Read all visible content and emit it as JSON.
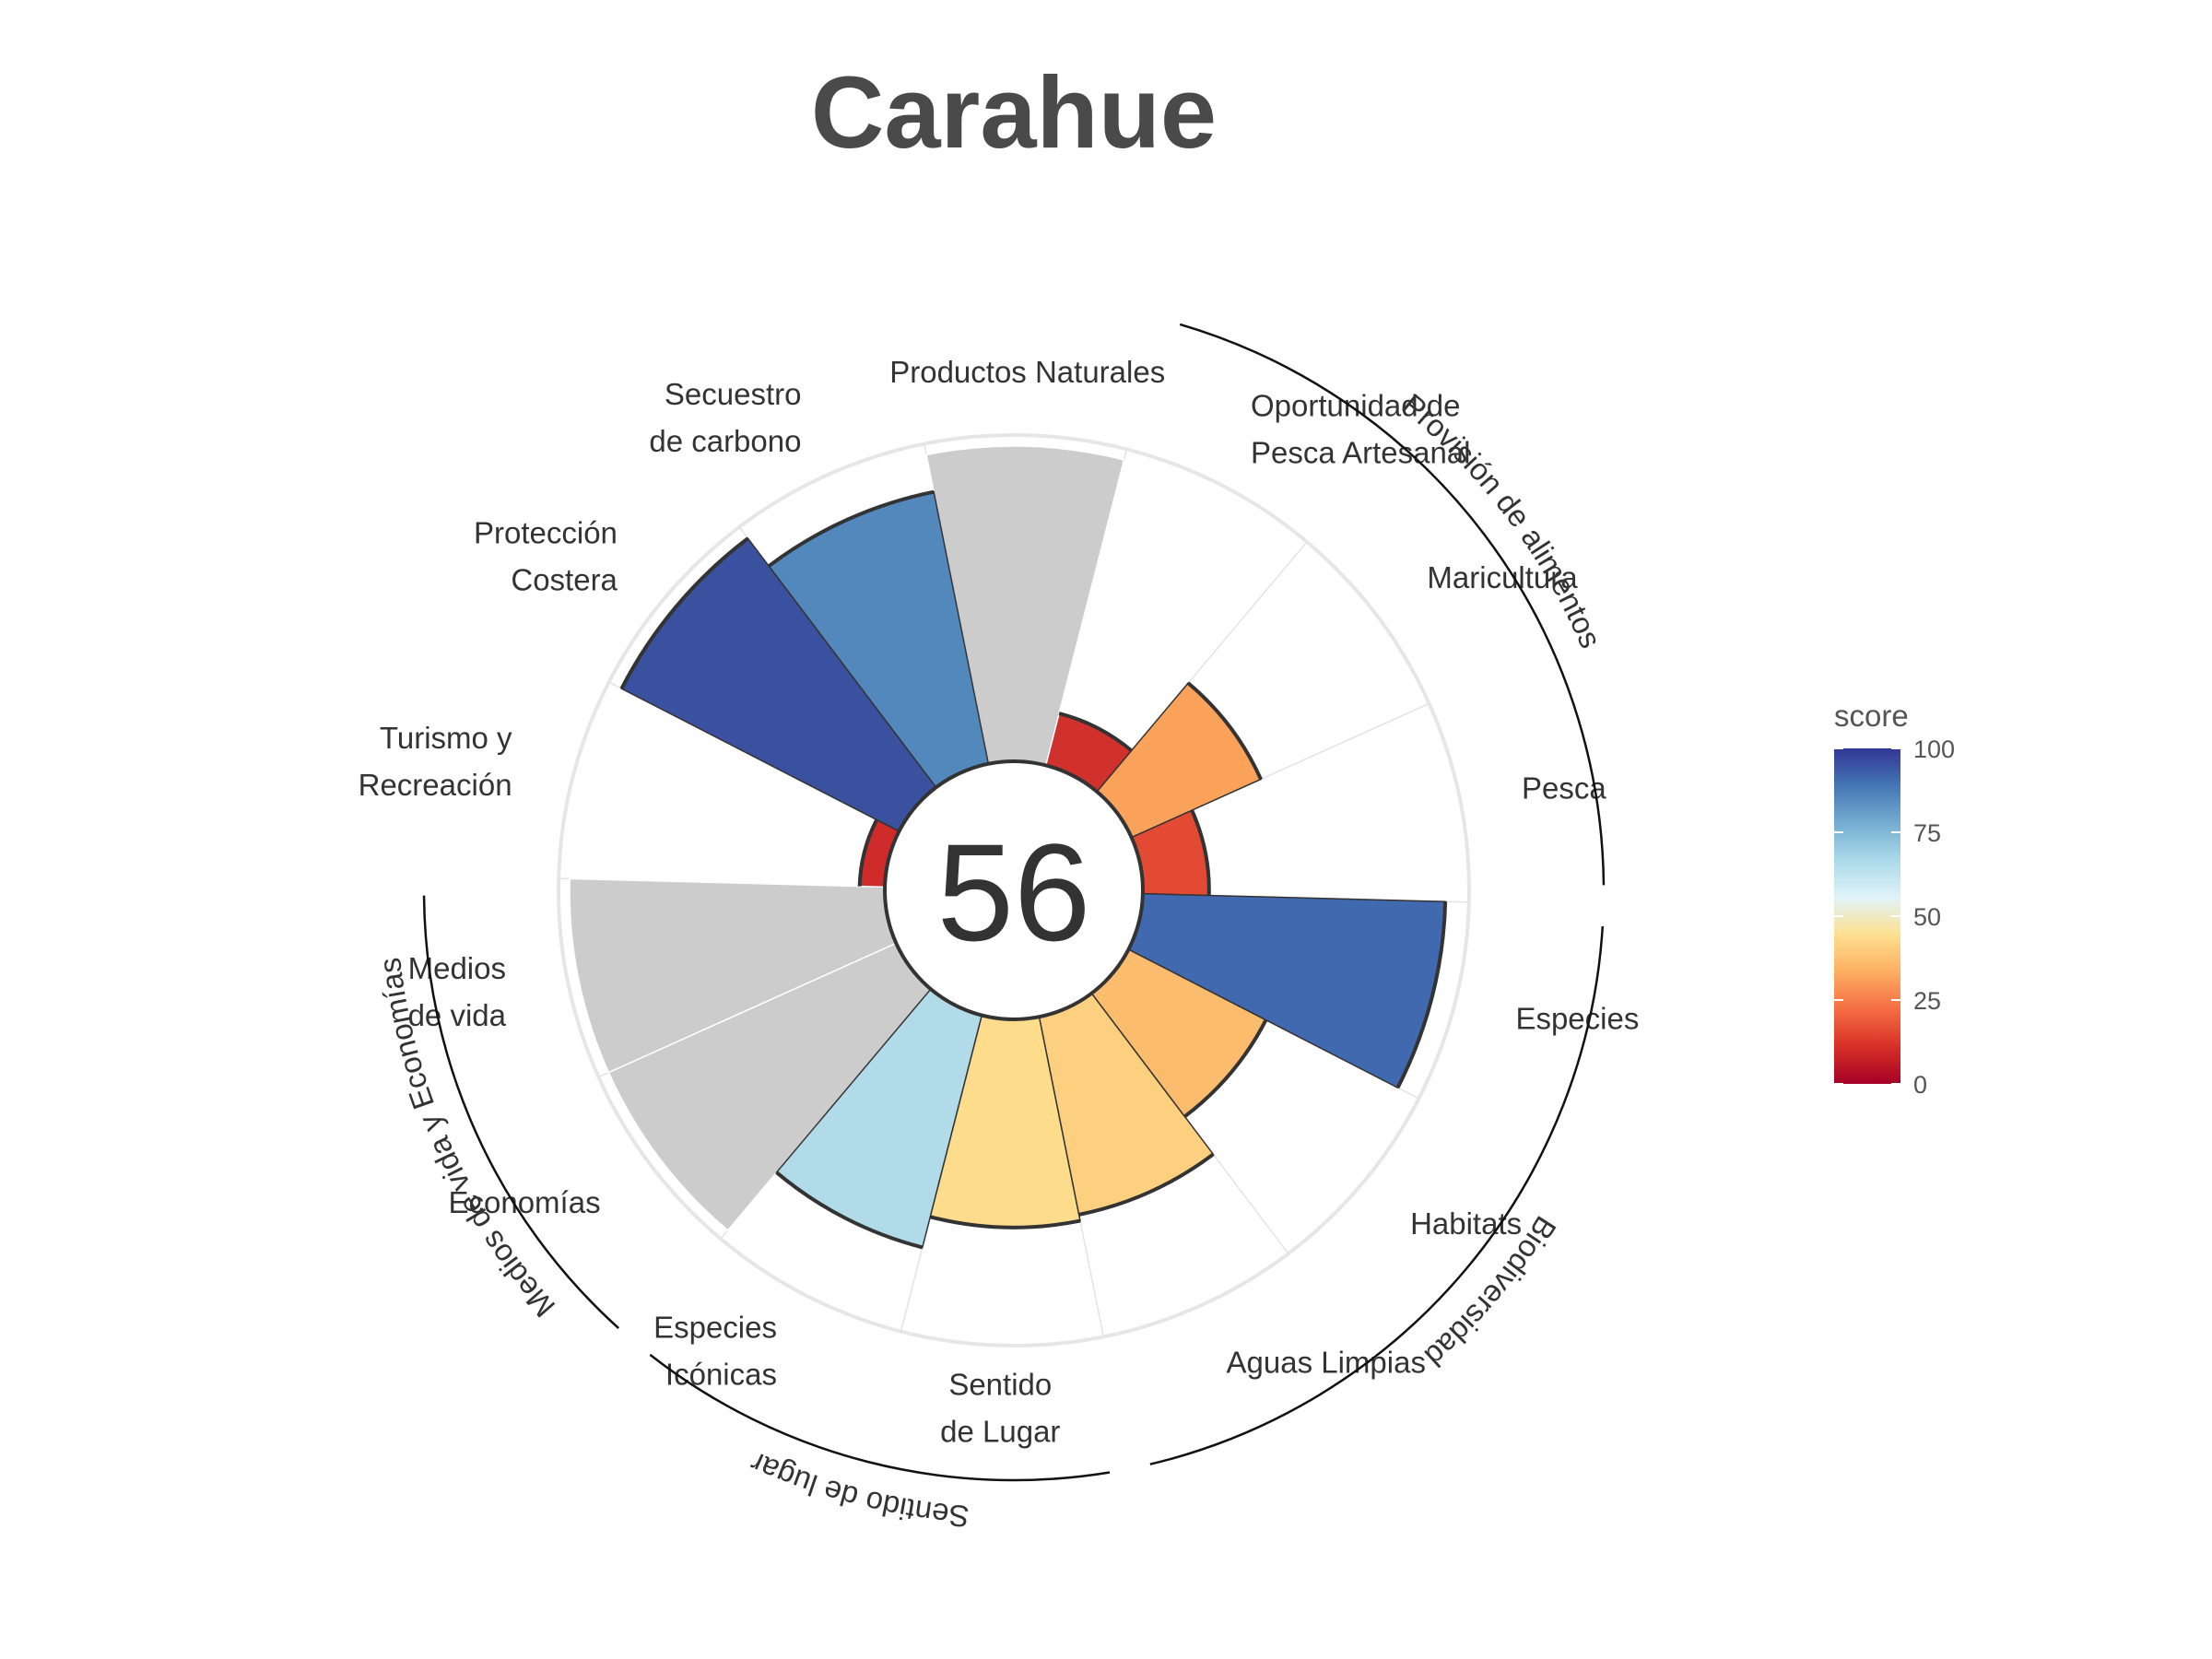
{
  "chart_data": {
    "type": "polar-bar",
    "title": "Carahue",
    "center_score": "56",
    "axis_range": [
      0,
      100
    ],
    "null_fill": "#cccccc",
    "categories": [
      {
        "id": "pesca",
        "lines": [
          "Pesca"
        ],
        "value": 21,
        "color": "#e24a33"
      },
      {
        "id": "maricultura",
        "lines": [
          "Maricultura"
        ],
        "value": 45,
        "color": "#fba25a"
      },
      {
        "id": "oportunidad",
        "lines": [
          "Oportunidad de",
          "Pesca Artesanal"
        ],
        "value": 17,
        "color": "#d0312d"
      },
      {
        "id": "productos",
        "lines": [
          "Productos Naturales"
        ],
        "value": null,
        "color": "#cccccc"
      },
      {
        "id": "carbono",
        "lines": [
          "Secuestro",
          "de carbono"
        ],
        "value": 88,
        "color": "#5288bc"
      },
      {
        "id": "proteccion",
        "lines": [
          "Protección",
          "Costera"
        ],
        "value": 99,
        "color": "#3a51a0"
      },
      {
        "id": "turismo",
        "lines": [
          "Turismo y",
          "Recreación"
        ],
        "value": 8,
        "color": "#cf2b2b"
      },
      {
        "id": "medios",
        "lines": [
          "Medios",
          "de vida"
        ],
        "value": null,
        "color": "#cccccc"
      },
      {
        "id": "economias",
        "lines": [
          "Economías"
        ],
        "value": null,
        "color": "#cccccc"
      },
      {
        "id": "iconicas",
        "lines": [
          "Especies",
          "Icónicas"
        ],
        "value": 76,
        "color": "#b1dbe8"
      },
      {
        "id": "sentido",
        "lines": [
          "Sentido",
          "de Lugar"
        ],
        "value": 66,
        "color": "#fddc8c"
      },
      {
        "id": "aguas",
        "lines": [
          "Aguas Limpias"
        ],
        "value": 64,
        "color": "#fdd080"
      },
      {
        "id": "habitats",
        "lines": [
          "Habitats"
        ],
        "value": 49,
        "color": "#fbbc6e"
      },
      {
        "id": "especies",
        "lines": [
          "Especies"
        ],
        "value": 96,
        "color": "#4069b0"
      }
    ],
    "groups": [
      {
        "id": "provision",
        "label": "Provisión de alimentos"
      },
      {
        "id": "biodiversidad",
        "label": "Biodiversidad"
      },
      {
        "id": "sentido-lugar",
        "label": "Sentido de lugar"
      },
      {
        "id": "medios-econ",
        "label": "Medios de vida y Economías"
      }
    ],
    "legend": {
      "title": "score",
      "ticks": [
        "100",
        "75",
        "50",
        "25",
        "0"
      ],
      "colors": [
        "#a50026",
        "#d73027",
        "#f46d43",
        "#fdae61",
        "#fee090",
        "#e0f3f8",
        "#abd9e9",
        "#74add1",
        "#4575b4",
        "#313695"
      ]
    }
  }
}
